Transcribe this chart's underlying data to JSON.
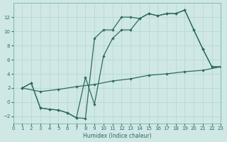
{
  "xlabel": "Humidex (Indice chaleur)",
  "bg_color": "#cfe8e5",
  "line_color": "#2e6b62",
  "grid_color": "#b8d8d4",
  "ylim": [
    -3,
    14
  ],
  "xlim": [
    0,
    23
  ],
  "line1_x": [
    1,
    2,
    3,
    4,
    5,
    6,
    7,
    8,
    9,
    10,
    11,
    12,
    13,
    14,
    15,
    16,
    17,
    18,
    19,
    20,
    21,
    22,
    23
  ],
  "line1_y": [
    2.0,
    2.7,
    -0.8,
    -1.0,
    -1.1,
    -1.5,
    -2.2,
    -2.3,
    9.0,
    10.2,
    10.2,
    12.0,
    12.0,
    11.8,
    12.5,
    12.2,
    12.5,
    12.5,
    13.0,
    10.2,
    7.5,
    5.0,
    5.0
  ],
  "line2_x": [
    1,
    2,
    3,
    4,
    5,
    6,
    7,
    8,
    9,
    10,
    11,
    12,
    13,
    14,
    15,
    16,
    17,
    18,
    19,
    20,
    21,
    22,
    23
  ],
  "line2_y": [
    2.0,
    2.7,
    -0.8,
    -1.0,
    -1.1,
    -1.5,
    -2.2,
    3.5,
    -0.3,
    6.5,
    9.0,
    10.2,
    10.2,
    11.8,
    12.5,
    12.2,
    12.5,
    12.5,
    13.0,
    10.2,
    7.5,
    5.0,
    5.0
  ],
  "line3_x": [
    1,
    3,
    5,
    7,
    9,
    11,
    13,
    15,
    17,
    19,
    21,
    23
  ],
  "line3_y": [
    2.0,
    1.5,
    1.8,
    2.2,
    2.5,
    3.0,
    3.3,
    3.8,
    4.0,
    4.3,
    4.5,
    5.0
  ],
  "yticks": [
    -2,
    0,
    2,
    4,
    6,
    8,
    10,
    12
  ],
  "xticks": [
    0,
    1,
    2,
    3,
    4,
    5,
    6,
    7,
    8,
    9,
    10,
    11,
    12,
    13,
    14,
    15,
    16,
    17,
    18,
    19,
    20,
    21,
    22,
    23
  ]
}
